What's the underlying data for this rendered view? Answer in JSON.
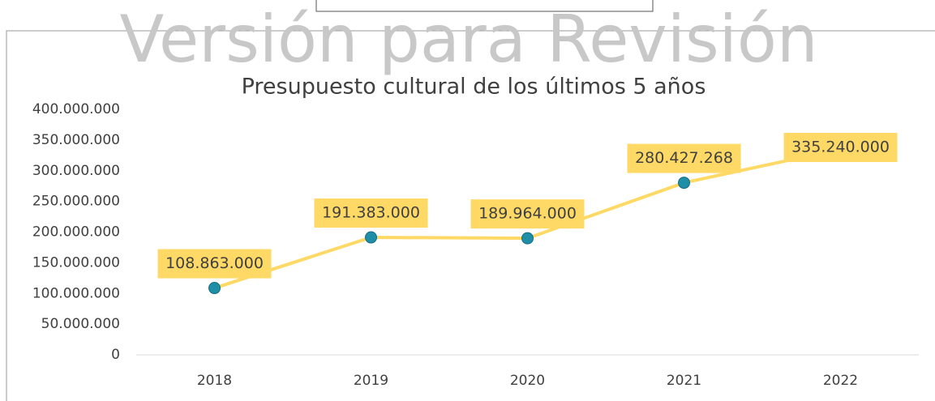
{
  "chart_data": {
    "type": "line",
    "watermark": "Versión para Revisión",
    "title": "Presupuesto cultural de los últimos 5 años",
    "categories": [
      "2018",
      "2019",
      "2020",
      "2021",
      "2022"
    ],
    "series": [
      {
        "name": "Presupuesto",
        "color": "#FFD966",
        "marker_color": "#1F8FA8",
        "values": [
          108863000,
          191383000,
          189964000,
          280427268,
          335240000
        ],
        "value_labels": [
          "108.863.000",
          "191.383.000",
          "189.964.000",
          "280.427.268",
          "335.240.000"
        ]
      }
    ],
    "ylim": [
      0,
      400000000
    ],
    "yticks": [
      0,
      {
        "value": 50000000,
        "label": "50.000.000"
      },
      {
        "value": 100000000,
        "label": "100.000.000"
      },
      {
        "value": 150000000,
        "label": "150.000.000"
      },
      {
        "value": 200000000,
        "label": "200.000.000"
      },
      {
        "value": 250000000,
        "label": "250.000.000"
      },
      {
        "value": 300000000,
        "label": "300.000.000"
      },
      {
        "value": 350000000,
        "label": "350.000.000"
      },
      {
        "value": 400000000,
        "label": "400.000.000"
      }
    ]
  }
}
